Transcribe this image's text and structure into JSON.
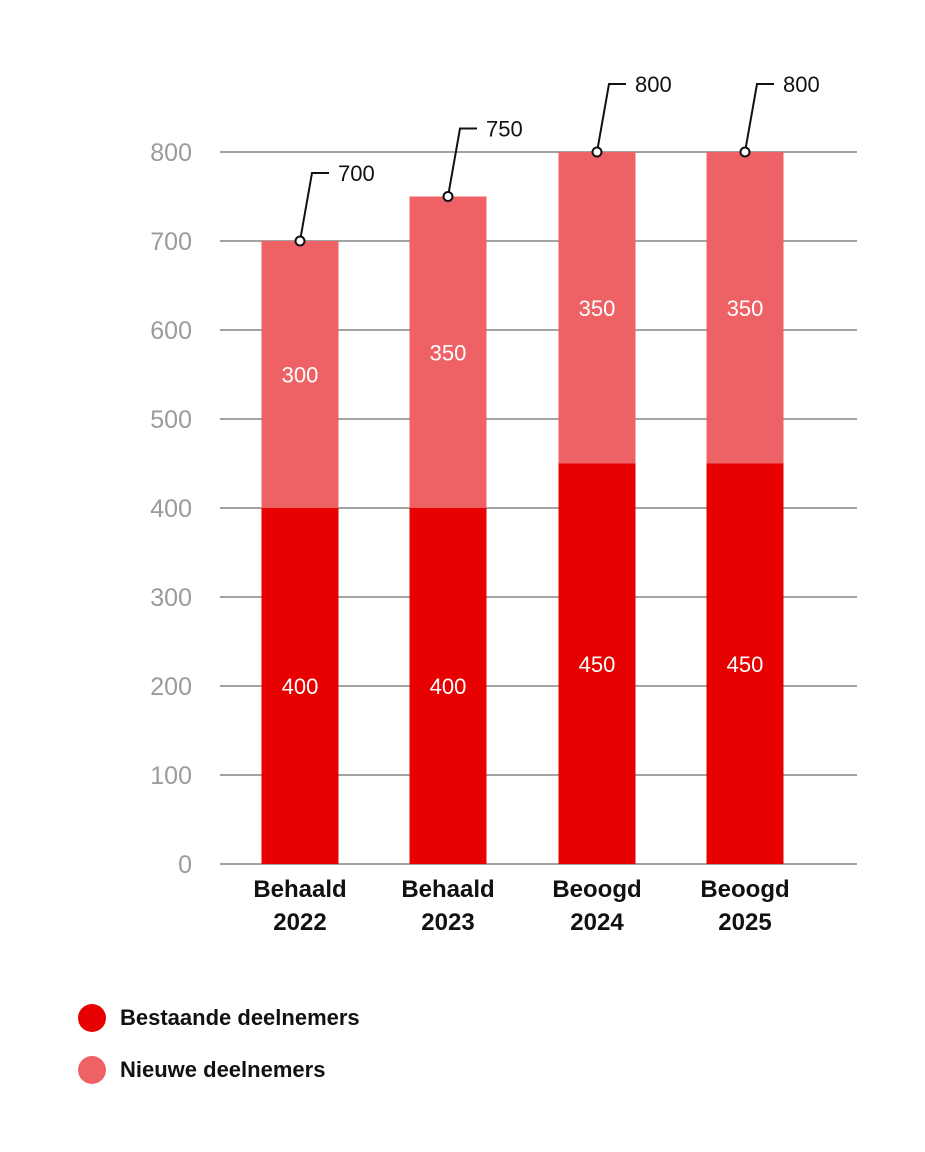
{
  "chart_data": {
    "type": "bar",
    "stacked": true,
    "categories": [
      [
        "Behaald",
        "2022"
      ],
      [
        "Behaald",
        "2023"
      ],
      [
        "Beoogd",
        "2024"
      ],
      [
        "Beoogd",
        "2025"
      ]
    ],
    "series": [
      {
        "name": "Bestaande deelnemers",
        "color": "#e60000",
        "values": [
          400,
          400,
          450,
          450
        ]
      },
      {
        "name": "Nieuwe deelnemers",
        "color": "#ee6266",
        "values": [
          300,
          350,
          350,
          350
        ]
      }
    ],
    "totals": [
      700,
      750,
      800,
      800
    ],
    "ylim": [
      0,
      800
    ],
    "yticks": [
      "0",
      "100",
      "200",
      "300",
      "400",
      "500",
      "600",
      "700",
      "800"
    ],
    "grid": true,
    "legend_position": "bottom-left"
  },
  "legend": {
    "items": [
      {
        "label": "Bestaande deelnemers",
        "color": "#e60000"
      },
      {
        "label": "Nieuwe deelnemers",
        "color": "#ee6266"
      }
    ]
  }
}
